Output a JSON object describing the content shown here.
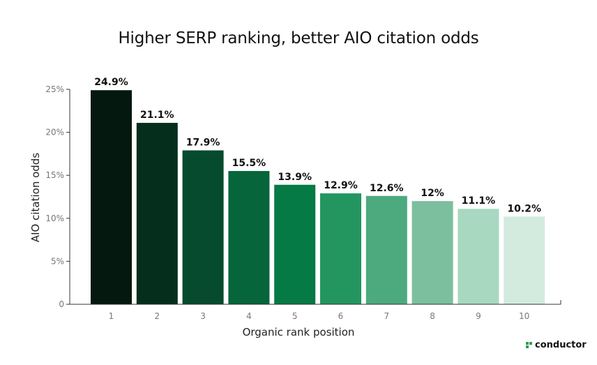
{
  "chart_data": {
    "type": "bar",
    "title": "Higher SERP ranking, better AIO citation odds",
    "xlabel": "Organic rank position",
    "ylabel": "AIO citation odds",
    "categories": [
      "1",
      "2",
      "3",
      "4",
      "5",
      "6",
      "7",
      "8",
      "9",
      "10"
    ],
    "values": [
      24.9,
      21.1,
      17.9,
      15.5,
      13.9,
      12.9,
      12.6,
      12,
      11.1,
      10.2
    ],
    "data_labels": [
      "24.9%",
      "21.1%",
      "17.9%",
      "15.5%",
      "13.9%",
      "12.9%",
      "12.6%",
      "12%",
      "11.1%",
      "10.2%"
    ],
    "colors": [
      "#04180f",
      "#052e1d",
      "#064b2d",
      "#06653b",
      "#067a44",
      "#239660",
      "#4daa7e",
      "#7cbf9e",
      "#a8d8c0",
      "#d3ebdf"
    ],
    "ylim": [
      0,
      25
    ],
    "yticks": [
      0,
      5,
      10,
      15,
      20,
      25
    ],
    "ytick_labels": [
      "0",
      "5%",
      "10%",
      "15%",
      "20%",
      "25%"
    ],
    "grid": false,
    "legend": "none"
  },
  "brand": {
    "logo_text": "conductor",
    "logo_color": "#2e9e55"
  }
}
